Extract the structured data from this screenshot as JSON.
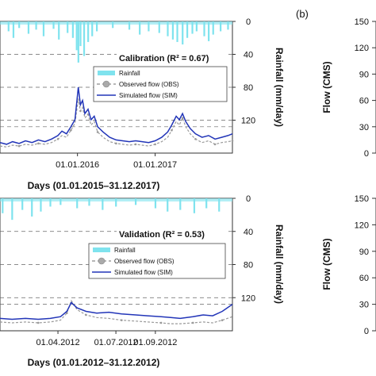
{
  "panel_b_tag": "(b)",
  "chart_data": [
    {
      "type": "line",
      "panel": "calibration",
      "title": "Calibration (R² = 0.67)",
      "xlabel": "Days (01.01.2015–31.12.2017)",
      "x_tick_labels": [
        "01.01.2016",
        "01.01.2017"
      ],
      "xlim": [
        "2015-01-01",
        "2017-12-31"
      ],
      "x_ticks": [
        "2016-01-01",
        "2017-01-01"
      ],
      "y2label": "Rainfall (mm/day)",
      "y2_ticks": [
        0,
        40,
        80,
        120
      ],
      "y2lim": [
        0,
        160
      ],
      "legend": [
        "Rainfall",
        "Observed flow (OBS)",
        "Simulated flow (SIM)"
      ],
      "colors": {
        "rainfall": "#7fe3ee",
        "observed": "#9a9a9a",
        "simulated": "#2235b8"
      },
      "flow_ylim": [
        0,
        150
      ],
      "rainfall_bars": [
        [
          "2015-02-10",
          12
        ],
        [
          "2015-03-05",
          20
        ],
        [
          "2015-04-01",
          8
        ],
        [
          "2015-05-15",
          15
        ],
        [
          "2015-06-20",
          10
        ],
        [
          "2015-07-25",
          18
        ],
        [
          "2015-09-10",
          9
        ],
        [
          "2015-10-05",
          22
        ],
        [
          "2015-11-15",
          14
        ],
        [
          "2015-12-10",
          20
        ],
        [
          "2015-12-28",
          35
        ],
        [
          "2016-01-05",
          50
        ],
        [
          "2016-01-15",
          30
        ],
        [
          "2016-02-01",
          42
        ],
        [
          "2016-02-20",
          25
        ],
        [
          "2016-03-10",
          18
        ],
        [
          "2016-04-01",
          12
        ],
        [
          "2016-06-15",
          8
        ],
        [
          "2016-09-01",
          10
        ],
        [
          "2016-10-20",
          16
        ],
        [
          "2016-12-01",
          12
        ],
        [
          "2017-01-20",
          14
        ],
        [
          "2017-03-01",
          18
        ],
        [
          "2017-03-25",
          22
        ],
        [
          "2017-04-15",
          25
        ],
        [
          "2017-05-10",
          28
        ],
        [
          "2017-06-01",
          20
        ],
        [
          "2017-06-25",
          15
        ],
        [
          "2017-07-15",
          12
        ],
        [
          "2017-08-20",
          18
        ],
        [
          "2017-09-10",
          24
        ],
        [
          "2017-10-01",
          16
        ],
        [
          "2017-11-05",
          12
        ],
        [
          "2017-12-10",
          10
        ]
      ],
      "simulated": [
        [
          "2015-01-01",
          12
        ],
        [
          "2015-02-01",
          10
        ],
        [
          "2015-03-01",
          13
        ],
        [
          "2015-04-01",
          11
        ],
        [
          "2015-05-01",
          14
        ],
        [
          "2015-06-01",
          12
        ],
        [
          "2015-07-01",
          15
        ],
        [
          "2015-08-01",
          13
        ],
        [
          "2015-09-01",
          16
        ],
        [
          "2015-10-01",
          20
        ],
        [
          "2015-10-20",
          25
        ],
        [
          "2015-11-10",
          22
        ],
        [
          "2015-12-01",
          30
        ],
        [
          "2015-12-20",
          38
        ],
        [
          "2016-01-05",
          75
        ],
        [
          "2016-01-15",
          55
        ],
        [
          "2016-01-25",
          60
        ],
        [
          "2016-02-05",
          45
        ],
        [
          "2016-02-20",
          50
        ],
        [
          "2016-03-05",
          38
        ],
        [
          "2016-03-20",
          42
        ],
        [
          "2016-04-05",
          30
        ],
        [
          "2016-05-01",
          24
        ],
        [
          "2016-06-01",
          18
        ],
        [
          "2016-07-01",
          15
        ],
        [
          "2016-08-01",
          14
        ],
        [
          "2016-09-01",
          13
        ],
        [
          "2016-10-01",
          14
        ],
        [
          "2016-11-01",
          13
        ],
        [
          "2016-12-01",
          12
        ],
        [
          "2017-01-01",
          14
        ],
        [
          "2017-02-01",
          18
        ],
        [
          "2017-03-01",
          24
        ],
        [
          "2017-03-20",
          32
        ],
        [
          "2017-04-10",
          42
        ],
        [
          "2017-04-25",
          38
        ],
        [
          "2017-05-10",
          45
        ],
        [
          "2017-05-25",
          36
        ],
        [
          "2017-06-15",
          28
        ],
        [
          "2017-07-10",
          22
        ],
        [
          "2017-08-10",
          18
        ],
        [
          "2017-09-10",
          20
        ],
        [
          "2017-10-10",
          16
        ],
        [
          "2017-11-10",
          18
        ],
        [
          "2017-12-10",
          20
        ],
        [
          "2017-12-31",
          22
        ]
      ],
      "observed": [
        [
          "2015-01-01",
          8
        ],
        [
          "2015-02-01",
          7
        ],
        [
          "2015-03-01",
          9
        ],
        [
          "2015-04-01",
          8
        ],
        [
          "2015-05-01",
          10
        ],
        [
          "2015-06-01",
          9
        ],
        [
          "2015-07-01",
          11
        ],
        [
          "2015-08-01",
          10
        ],
        [
          "2015-09-01",
          12
        ],
        [
          "2015-10-01",
          16
        ],
        [
          "2015-10-20",
          20
        ],
        [
          "2015-11-10",
          18
        ],
        [
          "2015-12-01",
          26
        ],
        [
          "2015-12-20",
          34
        ],
        [
          "2016-01-05",
          62
        ],
        [
          "2016-01-15",
          48
        ],
        [
          "2016-01-25",
          52
        ],
        [
          "2016-02-05",
          40
        ],
        [
          "2016-02-20",
          44
        ],
        [
          "2016-03-05",
          32
        ],
        [
          "2016-03-20",
          36
        ],
        [
          "2016-04-05",
          24
        ],
        [
          "2016-05-01",
          18
        ],
        [
          "2016-06-01",
          13
        ],
        [
          "2016-07-01",
          11
        ],
        [
          "2016-08-01",
          10
        ],
        [
          "2016-09-01",
          9
        ],
        [
          "2016-10-01",
          10
        ],
        [
          "2016-11-01",
          9
        ],
        [
          "2016-12-01",
          8
        ],
        [
          "2017-01-01",
          10
        ],
        [
          "2017-02-01",
          13
        ],
        [
          "2017-03-01",
          18
        ],
        [
          "2017-03-20",
          26
        ],
        [
          "2017-04-10",
          36
        ],
        [
          "2017-04-25",
          32
        ],
        [
          "2017-05-10",
          40
        ],
        [
          "2017-05-25",
          30
        ],
        [
          "2017-06-15",
          22
        ],
        [
          "2017-07-10",
          16
        ],
        [
          "2017-08-10",
          12
        ],
        [
          "2017-09-10",
          14
        ],
        [
          "2017-10-10",
          10
        ],
        [
          "2017-11-10",
          12
        ],
        [
          "2017-12-10",
          13
        ],
        [
          "2017-12-31",
          14
        ]
      ]
    },
    {
      "type": "line",
      "panel": "validation",
      "title": "Validation (R² = 0.53)",
      "xlabel": "Days (01.01.2012–31.12.2012)",
      "x_tick_labels": [
        "01.04.2012",
        "01.07.2012",
        "01.09.2012"
      ],
      "xlim": [
        "2012-01-01",
        "2012-12-31"
      ],
      "x_ticks": [
        "2012-04-01",
        "2012-07-01",
        "2012-09-01"
      ],
      "y2label": "Rainfall (mm/day)",
      "y2_ticks": [
        0,
        40,
        80,
        120
      ],
      "y2lim": [
        0,
        160
      ],
      "legend": [
        "Rainfall",
        "Observed flow (OBS)",
        "Simulated flow (SIM)"
      ],
      "colors": {
        "rainfall": "#7fe3ee",
        "observed": "#9a9a9a",
        "simulated": "#2235b8"
      },
      "flow_ylim": [
        0,
        150
      ],
      "rainfall_bars": [
        [
          "2012-01-05",
          18
        ],
        [
          "2012-01-20",
          26
        ],
        [
          "2012-02-05",
          14
        ],
        [
          "2012-02-20",
          22
        ],
        [
          "2012-03-05",
          16
        ],
        [
          "2012-03-20",
          10
        ],
        [
          "2012-04-05",
          8
        ],
        [
          "2012-05-01",
          12
        ],
        [
          "2012-05-20",
          9
        ],
        [
          "2012-06-10",
          14
        ],
        [
          "2012-07-01",
          10
        ],
        [
          "2012-08-01",
          8
        ],
        [
          "2012-09-01",
          12
        ],
        [
          "2012-09-20",
          16
        ],
        [
          "2012-10-10",
          14
        ],
        [
          "2012-11-01",
          18
        ],
        [
          "2012-11-20",
          12
        ],
        [
          "2012-12-10",
          16
        ]
      ],
      "simulated": [
        [
          "2012-01-01",
          14
        ],
        [
          "2012-01-20",
          13
        ],
        [
          "2012-02-10",
          14
        ],
        [
          "2012-03-01",
          13
        ],
        [
          "2012-03-20",
          14
        ],
        [
          "2012-04-05",
          16
        ],
        [
          "2012-04-15",
          22
        ],
        [
          "2012-04-22",
          32
        ],
        [
          "2012-05-01",
          26
        ],
        [
          "2012-05-15",
          22
        ],
        [
          "2012-06-01",
          20
        ],
        [
          "2012-06-20",
          21
        ],
        [
          "2012-07-10",
          19
        ],
        [
          "2012-08-01",
          18
        ],
        [
          "2012-08-20",
          17
        ],
        [
          "2012-09-10",
          16
        ],
        [
          "2012-09-25",
          15
        ],
        [
          "2012-10-10",
          14
        ],
        [
          "2012-10-30",
          16
        ],
        [
          "2012-11-15",
          18
        ],
        [
          "2012-11-30",
          17
        ],
        [
          "2012-12-15",
          22
        ],
        [
          "2012-12-31",
          30
        ]
      ],
      "observed": [
        [
          "2012-01-01",
          10
        ],
        [
          "2012-01-20",
          9
        ],
        [
          "2012-02-10",
          10
        ],
        [
          "2012-03-01",
          9
        ],
        [
          "2012-03-20",
          10
        ],
        [
          "2012-04-05",
          12
        ],
        [
          "2012-04-15",
          20
        ],
        [
          "2012-04-22",
          34
        ],
        [
          "2012-05-01",
          24
        ],
        [
          "2012-05-15",
          18
        ],
        [
          "2012-06-01",
          15
        ],
        [
          "2012-06-20",
          14
        ],
        [
          "2012-07-10",
          12
        ],
        [
          "2012-08-01",
          11
        ],
        [
          "2012-08-20",
          10
        ],
        [
          "2012-09-10",
          9
        ],
        [
          "2012-09-25",
          8
        ],
        [
          "2012-10-10",
          8
        ],
        [
          "2012-10-30",
          9
        ],
        [
          "2012-11-15",
          10
        ],
        [
          "2012-11-30",
          9
        ],
        [
          "2012-12-15",
          12
        ],
        [
          "2012-12-31",
          16
        ]
      ]
    },
    {
      "type": "line",
      "panel": "b-top",
      "ylabel": "Flow (CMS)",
      "y_ticks": [
        0,
        30,
        60,
        90,
        120,
        150
      ],
      "ylim": [
        0,
        150
      ]
    },
    {
      "type": "line",
      "panel": "b-bottom",
      "ylabel": "Flow (CMS)",
      "y_ticks": [
        0,
        30,
        60,
        90,
        120,
        150
      ],
      "ylim": [
        0,
        150
      ]
    }
  ]
}
